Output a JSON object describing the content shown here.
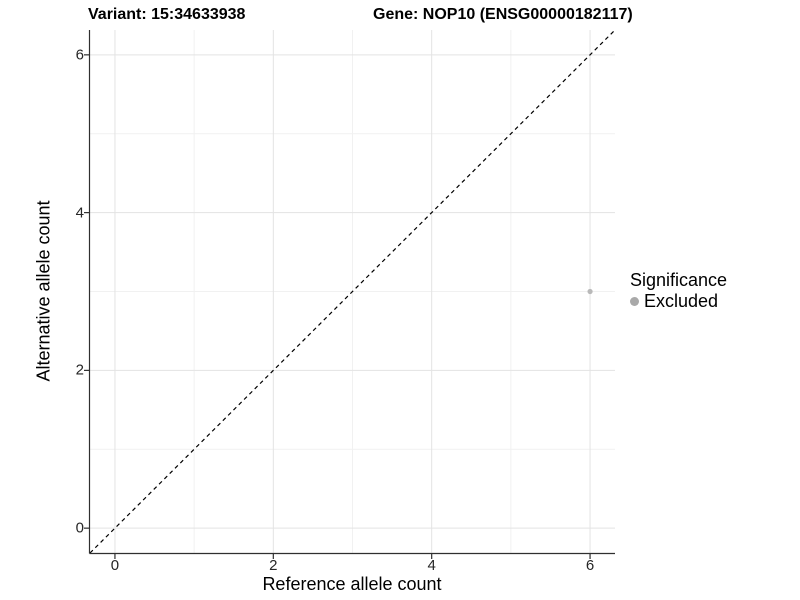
{
  "titles": {
    "variant": "Variant: 15:34633938",
    "gene": "Gene: NOP10 (ENSG00000182117)"
  },
  "chart_data": {
    "type": "scatter",
    "title": "Variant: 15:34633938   Gene: NOP10 (ENSG00000182117)",
    "xlabel": "Reference allele count",
    "ylabel": "Alternative allele count",
    "xlim": [
      -0.315,
      6.315
    ],
    "ylim": [
      -0.315,
      6.315
    ],
    "x_ticks": [
      0,
      2,
      4,
      6
    ],
    "y_ticks": [
      0,
      2,
      4,
      6
    ],
    "x_minor_ticks": [
      1,
      3,
      5
    ],
    "y_minor_ticks": [
      1,
      3,
      5
    ],
    "grid": "major-and-minor",
    "legend_position": "right",
    "legend": {
      "title": "Significance",
      "items": [
        {
          "label": "Excluded",
          "color": "#a9a9a9"
        }
      ]
    },
    "series": [
      {
        "name": "Excluded",
        "color": "#b9b9b9",
        "points": [
          {
            "x": 6,
            "y": 3
          }
        ]
      }
    ],
    "reference_line": {
      "type": "identity y=x",
      "slope": 1,
      "intercept": 0,
      "style": "dashed",
      "color": "#000000"
    }
  },
  "colors": {
    "background": "#ffffff",
    "grid_major": "#e3e3e3",
    "grid_minor": "#f1f1f1",
    "axis_line": "#2f2f2f",
    "tick_label": "#262626",
    "point": "#b9b9b9",
    "legend_dot": "#a9a9a9"
  }
}
